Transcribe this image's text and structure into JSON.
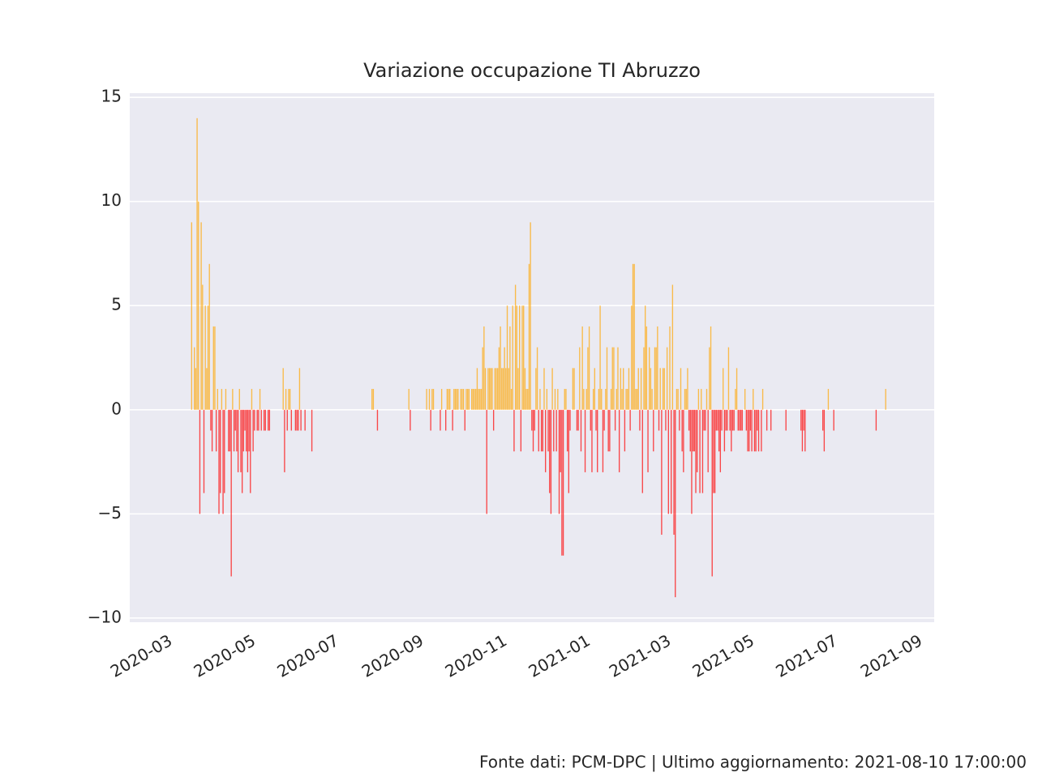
{
  "chart_data": {
    "type": "bar",
    "title": "Variazione occupazione TI Abruzzo",
    "footer": "Fonte dati: PCM-DPC | Ultimo aggiornamento: 2021-08-10 17:00:00",
    "positive_color": "#ffa500",
    "negative_color": "#ff0000",
    "grid": true,
    "ylim": [
      -10.2,
      15.2
    ],
    "yticks": [
      {
        "value": -10,
        "label": "−10"
      },
      {
        "value": -5,
        "label": "−5"
      },
      0,
      5,
      10,
      15
    ],
    "xlim": [
      -30.3,
      558.5
    ],
    "xticks": [
      {
        "value": 0,
        "label": "2020-03"
      },
      {
        "value": 61,
        "label": "2020-05"
      },
      {
        "value": 122,
        "label": "2020-07"
      },
      {
        "value": 184,
        "label": "2020-09"
      },
      {
        "value": 245,
        "label": "2020-11"
      },
      {
        "value": 306,
        "label": "2021-01"
      },
      {
        "value": 365,
        "label": "2021-03"
      },
      {
        "value": 426,
        "label": "2021-05"
      },
      {
        "value": 487,
        "label": "2021-07"
      },
      {
        "value": 549,
        "label": "2021-09"
      }
    ],
    "x": [
      15,
      16,
      17,
      18,
      19,
      20,
      21,
      22,
      23,
      24,
      25,
      26,
      27,
      28,
      29,
      30,
      31,
      32,
      33,
      34,
      35,
      36,
      37,
      38,
      39,
      40,
      41,
      42,
      43,
      44,
      45,
      46,
      47,
      48,
      49,
      50,
      51,
      52,
      53,
      54,
      55,
      56,
      57,
      58,
      59,
      60,
      61,
      62,
      63,
      64,
      65,
      66,
      67,
      68,
      69,
      70,
      71,
      72,
      73,
      74,
      75,
      76,
      77,
      78,
      79,
      80,
      81,
      82,
      83,
      84,
      85,
      86,
      87,
      88,
      89,
      90,
      91,
      92,
      93,
      94,
      95,
      96,
      97,
      98,
      99,
      100,
      101,
      102,
      103,
      104,
      105,
      106,
      107,
      108,
      109,
      110,
      111,
      112,
      113,
      114,
      115,
      116,
      117,
      118,
      119,
      120,
      121,
      122,
      123,
      124,
      125,
      126,
      127,
      128,
      129,
      130,
      131,
      132,
      133,
      134,
      135,
      136,
      137,
      138,
      139,
      140,
      141,
      142,
      143,
      144,
      145,
      146,
      147,
      148,
      149,
      150,
      151,
      152,
      153,
      154,
      155,
      156,
      157,
      158,
      159,
      160,
      161,
      162,
      163,
      164,
      165,
      166,
      167,
      168,
      169,
      170,
      171,
      172,
      173,
      174,
      175,
      176,
      177,
      178,
      179,
      180,
      181,
      182,
      183,
      184,
      185,
      186,
      187,
      188,
      189,
      190,
      191,
      192,
      193,
      194,
      195,
      196,
      197,
      198,
      199,
      200,
      201,
      202,
      203,
      204,
      205,
      206,
      207,
      208,
      209,
      210,
      211,
      212,
      213,
      214,
      215,
      216,
      217,
      218,
      219,
      220,
      221,
      222,
      223,
      224,
      225,
      226,
      227,
      228,
      229,
      230,
      231,
      232,
      233,
      234,
      235,
      236,
      237,
      238,
      239,
      240,
      241,
      242,
      243,
      244,
      245,
      246,
      247,
      248,
      249,
      250,
      251,
      252,
      253,
      254,
      255,
      256,
      257,
      258,
      259,
      260,
      261,
      262,
      263,
      264,
      265,
      266,
      267,
      268,
      269,
      270,
      271,
      272,
      273,
      274,
      275,
      276,
      277,
      278,
      279,
      280,
      281,
      282,
      283,
      284,
      285,
      286,
      287,
      288,
      289,
      290,
      291,
      292,
      293,
      294,
      295,
      296,
      297,
      298,
      299,
      300,
      301,
      302,
      303,
      304,
      305,
      306,
      307,
      308,
      309,
      310,
      311,
      312,
      313,
      314,
      315,
      316,
      317,
      318,
      319,
      320,
      321,
      322,
      323,
      324,
      325,
      326,
      327,
      328,
      329,
      330,
      331,
      332,
      333,
      334,
      335,
      336,
      337,
      338,
      339,
      340,
      341,
      342,
      343,
      344,
      345,
      346,
      347,
      348,
      349,
      350,
      351,
      352,
      353,
      354,
      355,
      356,
      357,
      358,
      359,
      360,
      361,
      362,
      363,
      364,
      365,
      366,
      367,
      368,
      369,
      370,
      371,
      372,
      373,
      374,
      375,
      376,
      377,
      378,
      379,
      380,
      381,
      382,
      383,
      384,
      385,
      386,
      387,
      388,
      389,
      390,
      391,
      392,
      393,
      394,
      395,
      396,
      397,
      398,
      399,
      400,
      401,
      402,
      403,
      404,
      405,
      406,
      407,
      408,
      409,
      410,
      411,
      412,
      413,
      414,
      415,
      416,
      417,
      418,
      419,
      420,
      421,
      422,
      423,
      424,
      425,
      426,
      427,
      428,
      429,
      430,
      431,
      432,
      433,
      434,
      435,
      436,
      437,
      438,
      439,
      440,
      441,
      442,
      443,
      444,
      445,
      446,
      447,
      448,
      449,
      450,
      451,
      452,
      453,
      454,
      455,
      456,
      457,
      458,
      459,
      460,
      461,
      462,
      463,
      464,
      465,
      466,
      467,
      468,
      469,
      470,
      471,
      472,
      473,
      474,
      475,
      476,
      477,
      478,
      479,
      480,
      481,
      482,
      483,
      484,
      485,
      486,
      487,
      488,
      489,
      490,
      491,
      492,
      493,
      494,
      495,
      496,
      497,
      498,
      499,
      500,
      501,
      502,
      503,
      504,
      505,
      506,
      507,
      508,
      509,
      510,
      511,
      512,
      513,
      514,
      515,
      516,
      517,
      518,
      519,
      520,
      521,
      522,
      523,
      524,
      525,
      526,
      527
    ],
    "values": [
      9,
      0,
      3,
      2,
      14,
      10,
      -5,
      9,
      6,
      -4,
      5,
      2,
      5,
      7,
      -1,
      -2,
      4,
      4,
      -2,
      1,
      -5,
      -4,
      1,
      -5,
      -4,
      1,
      0,
      -2,
      -2,
      -8,
      1,
      -2,
      -1,
      -2,
      -3,
      1,
      -3,
      -4,
      -2,
      -1,
      -2,
      -3,
      -2,
      -4,
      1,
      -2,
      -1,
      0,
      -1,
      -1,
      1,
      -1,
      0,
      -1,
      -1,
      0,
      -1,
      -1,
      0,
      0,
      0,
      0,
      0,
      0,
      0,
      0,
      0,
      2,
      -3,
      1,
      -1,
      1,
      1,
      -1,
      0,
      0,
      -1,
      -1,
      -1,
      2,
      -1,
      0,
      0,
      -1,
      0,
      0,
      0,
      0,
      -2,
      0,
      0,
      0,
      0,
      0,
      0,
      0,
      0,
      0,
      0,
      0,
      0,
      0,
      0,
      0,
      0,
      0,
      0,
      0,
      0,
      0,
      0,
      0,
      0,
      0,
      0,
      0,
      0,
      0,
      0,
      0,
      0,
      0,
      0,
      0,
      0,
      0,
      0,
      0,
      0,
      0,
      0,
      0,
      1,
      1,
      0,
      0,
      -1,
      0,
      0,
      0,
      0,
      0,
      0,
      0,
      0,
      0,
      0,
      0,
      0,
      0,
      0,
      0,
      0,
      0,
      0,
      0,
      0,
      0,
      0,
      1,
      -1,
      0,
      0,
      0,
      0,
      0,
      0,
      0,
      0,
      0,
      0,
      0,
      1,
      0,
      1,
      -1,
      1,
      1,
      0,
      0,
      0,
      0,
      -1,
      1,
      0,
      0,
      -1,
      1,
      1,
      1,
      0,
      -1,
      1,
      1,
      1,
      1,
      0,
      1,
      1,
      1,
      -1,
      1,
      1,
      1,
      0,
      1,
      1,
      1,
      1,
      2,
      1,
      1,
      1,
      3,
      4,
      2,
      -5,
      2,
      2,
      2,
      2,
      -1,
      2,
      2,
      2,
      3,
      4,
      2,
      2,
      3,
      2,
      5,
      2,
      4,
      1,
      5,
      -2,
      6,
      5,
      2,
      5,
      -2,
      5,
      5,
      2,
      1,
      1,
      7,
      9,
      -1,
      -2,
      -1,
      2,
      3,
      -2,
      1,
      -2,
      -2,
      2,
      -3,
      1,
      -2,
      -4,
      -5,
      2,
      -2,
      1,
      -2,
      1,
      -5,
      -3,
      -7,
      -7,
      1,
      1,
      -2,
      -4,
      -1,
      0,
      2,
      2,
      0,
      -1,
      -1,
      3,
      -2,
      4,
      1,
      -3,
      1,
      3,
      4,
      -1,
      -3,
      1,
      2,
      -1,
      -3,
      1,
      5,
      1,
      -3,
      -1,
      1,
      3,
      -2,
      -2,
      1,
      3,
      3,
      -1,
      1,
      3,
      -3,
      2,
      1,
      2,
      -2,
      1,
      1,
      2,
      -1,
      5,
      7,
      7,
      1,
      1,
      2,
      -1,
      2,
      -4,
      3,
      5,
      4,
      -3,
      3,
      2,
      1,
      -2,
      3,
      3,
      4,
      -1,
      2,
      -6,
      2,
      2,
      -1,
      3,
      -5,
      4,
      -5,
      6,
      -6,
      -9,
      1,
      1,
      -1,
      2,
      -2,
      -3,
      1,
      1,
      2,
      -1,
      -2,
      -5,
      -2,
      -2,
      -4,
      -3,
      1,
      -4,
      1,
      -4,
      -1,
      -1,
      1,
      -3,
      3,
      4,
      -8,
      -4,
      -4,
      -1,
      -1,
      -2,
      -3,
      -1,
      2,
      -2,
      -1,
      -1,
      3,
      -1,
      -2,
      -1,
      -1,
      1,
      2,
      -1,
      -1,
      -1,
      -1,
      0,
      1,
      -1,
      -2,
      -2,
      -1,
      -2,
      1,
      -2,
      -2,
      -1,
      -2,
      0,
      -2,
      1,
      0,
      0,
      -1,
      0,
      0,
      -1,
      0,
      0,
      0,
      0,
      0,
      0,
      0,
      0,
      0,
      0,
      -1,
      0,
      0,
      0,
      0,
      0,
      0,
      0,
      0,
      0,
      0,
      -1,
      -2,
      -1,
      -2,
      0,
      0,
      0,
      0,
      0,
      0,
      0,
      0,
      0,
      0,
      0,
      0,
      -1,
      -2,
      0,
      0,
      1,
      0,
      0,
      0,
      -1,
      0,
      0,
      0,
      0,
      0,
      0,
      0,
      0,
      0,
      0,
      0,
      0,
      0,
      0,
      0,
      0,
      0,
      0,
      0,
      0,
      0,
      0,
      0,
      0,
      0,
      0,
      0,
      0,
      0,
      0,
      -1,
      0,
      0,
      0,
      0,
      0,
      0,
      1,
      0,
      0,
      0,
      0
    ]
  }
}
